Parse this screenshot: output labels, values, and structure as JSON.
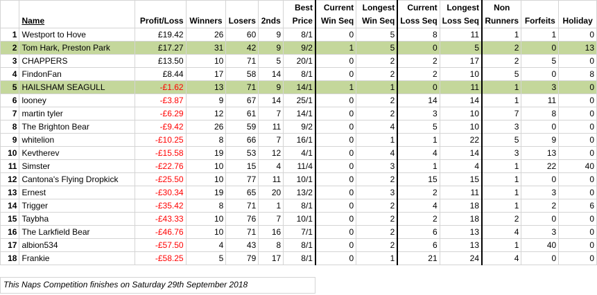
{
  "headers": {
    "name": "Name",
    "profit_loss": "Profit/Loss",
    "winners": "Winners",
    "losers": "Losers",
    "seconds": "2nds",
    "best_price_1": "Best",
    "best_price_2": "Price",
    "cur_win_1": "Current",
    "cur_win_2": "Win Seq",
    "long_win_1": "Longest",
    "long_win_2": "Win Seq",
    "cur_loss_1": "Current",
    "cur_loss_2": "Loss Seq",
    "long_loss_1": "Longest",
    "long_loss_2": "Loss Seq",
    "non_runners_1": "Non",
    "non_runners_2": "Runners",
    "forfeits": "Forfeits",
    "holiday": "Holiday"
  },
  "rows": [
    {
      "pos": "1",
      "name": "Westport to Hove",
      "pl": "£19.42",
      "winners": "26",
      "losers": "60",
      "seconds": "9",
      "best": "8/1",
      "cur_win": "0",
      "long_win": "5",
      "cur_loss": "8",
      "long_loss": "11",
      "non_runners": "1",
      "forfeits": "1",
      "holiday": "0"
    },
    {
      "pos": "2",
      "name": "Tom Hark, Preston Park",
      "pl": "£17.27",
      "winners": "31",
      "losers": "42",
      "seconds": "9",
      "best": "9/2",
      "cur_win": "1",
      "long_win": "5",
      "cur_loss": "0",
      "long_loss": "5",
      "non_runners": "2",
      "forfeits": "0",
      "holiday": "13"
    },
    {
      "pos": "3",
      "name": "CHAPPERS",
      "pl": "£13.50",
      "winners": "10",
      "losers": "71",
      "seconds": "5",
      "best": "20/1",
      "cur_win": "0",
      "long_win": "2",
      "cur_loss": "2",
      "long_loss": "17",
      "non_runners": "2",
      "forfeits": "5",
      "holiday": "0"
    },
    {
      "pos": "4",
      "name": "FindonFan",
      "pl": "£8.44",
      "winners": "17",
      "losers": "58",
      "seconds": "14",
      "best": "8/1",
      "cur_win": "0",
      "long_win": "2",
      "cur_loss": "2",
      "long_loss": "10",
      "non_runners": "5",
      "forfeits": "0",
      "holiday": "8"
    },
    {
      "pos": "5",
      "name": "HAILSHAM SEAGULL",
      "pl": "-£1.62",
      "winners": "13",
      "losers": "71",
      "seconds": "9",
      "best": "14/1",
      "cur_win": "1",
      "long_win": "1",
      "cur_loss": "0",
      "long_loss": "11",
      "non_runners": "1",
      "forfeits": "3",
      "holiday": "0"
    },
    {
      "pos": "6",
      "name": "looney",
      "pl": "-£3.87",
      "winners": "9",
      "losers": "67",
      "seconds": "14",
      "best": "25/1",
      "cur_win": "0",
      "long_win": "2",
      "cur_loss": "14",
      "long_loss": "14",
      "non_runners": "1",
      "forfeits": "11",
      "holiday": "0"
    },
    {
      "pos": "7",
      "name": "martin tyler",
      "pl": "-£6.29",
      "winners": "12",
      "losers": "61",
      "seconds": "7",
      "best": "14/1",
      "cur_win": "0",
      "long_win": "2",
      "cur_loss": "3",
      "long_loss": "10",
      "non_runners": "7",
      "forfeits": "8",
      "holiday": "0"
    },
    {
      "pos": "8",
      "name": "The Brighton Bear",
      "pl": "-£9.42",
      "winners": "26",
      "losers": "59",
      "seconds": "11",
      "best": "9/2",
      "cur_win": "0",
      "long_win": "4",
      "cur_loss": "5",
      "long_loss": "10",
      "non_runners": "3",
      "forfeits": "0",
      "holiday": "0"
    },
    {
      "pos": "9",
      "name": "whitelion",
      "pl": "-£10.25",
      "winners": "8",
      "losers": "66",
      "seconds": "7",
      "best": "16/1",
      "cur_win": "0",
      "long_win": "1",
      "cur_loss": "1",
      "long_loss": "22",
      "non_runners": "5",
      "forfeits": "9",
      "holiday": "0"
    },
    {
      "pos": "10",
      "name": "Kevtherev",
      "pl": "-£15.58",
      "winners": "19",
      "losers": "53",
      "seconds": "12",
      "best": "4/1",
      "cur_win": "0",
      "long_win": "4",
      "cur_loss": "4",
      "long_loss": "14",
      "non_runners": "3",
      "forfeits": "13",
      "holiday": "0"
    },
    {
      "pos": "11",
      "name": "Simster",
      "pl": "-£22.76",
      "winners": "10",
      "losers": "15",
      "seconds": "4",
      "best": "11/4",
      "cur_win": "0",
      "long_win": "3",
      "cur_loss": "1",
      "long_loss": "4",
      "non_runners": "1",
      "forfeits": "22",
      "holiday": "40"
    },
    {
      "pos": "12",
      "name": "Cantona's Flying Dropkick",
      "pl": "-£25.50",
      "winners": "10",
      "losers": "77",
      "seconds": "11",
      "best": "10/1",
      "cur_win": "0",
      "long_win": "2",
      "cur_loss": "15",
      "long_loss": "15",
      "non_runners": "1",
      "forfeits": "0",
      "holiday": "0"
    },
    {
      "pos": "13",
      "name": "Ernest",
      "pl": "-£30.34",
      "winners": "19",
      "losers": "65",
      "seconds": "20",
      "best": "13/2",
      "cur_win": "0",
      "long_win": "3",
      "cur_loss": "2",
      "long_loss": "11",
      "non_runners": "1",
      "forfeits": "3",
      "holiday": "0"
    },
    {
      "pos": "14",
      "name": "Trigger",
      "pl": "-£35.42",
      "winners": "8",
      "losers": "71",
      "seconds": "1",
      "best": "8/1",
      "cur_win": "0",
      "long_win": "2",
      "cur_loss": "4",
      "long_loss": "18",
      "non_runners": "1",
      "forfeits": "2",
      "holiday": "6"
    },
    {
      "pos": "15",
      "name": "Taybha",
      "pl": "-£43.33",
      "winners": "10",
      "losers": "76",
      "seconds": "7",
      "best": "10/1",
      "cur_win": "0",
      "long_win": "2",
      "cur_loss": "2",
      "long_loss": "18",
      "non_runners": "2",
      "forfeits": "0",
      "holiday": "0"
    },
    {
      "pos": "16",
      "name": "The Larkfield Bear",
      "pl": "-£46.76",
      "winners": "10",
      "losers": "71",
      "seconds": "16",
      "best": "7/1",
      "cur_win": "0",
      "long_win": "2",
      "cur_loss": "6",
      "long_loss": "13",
      "non_runners": "4",
      "forfeits": "3",
      "holiday": "0"
    },
    {
      "pos": "17",
      "name": "albion534",
      "pl": "-£57.50",
      "winners": "4",
      "losers": "43",
      "seconds": "8",
      "best": "8/1",
      "cur_win": "0",
      "long_win": "2",
      "cur_loss": "6",
      "long_loss": "13",
      "non_runners": "1",
      "forfeits": "40",
      "holiday": "0"
    },
    {
      "pos": "18",
      "name": "Frankie",
      "pl": "-£58.25",
      "winners": "5",
      "losers": "79",
      "seconds": "17",
      "best": "8/1",
      "cur_win": "0",
      "long_win": "1",
      "cur_loss": "21",
      "long_loss": "24",
      "non_runners": "4",
      "forfeits": "0",
      "holiday": "0"
    }
  ],
  "highlight_color": "#c4d79b",
  "negative_color": "#ff0000",
  "footnote": "This Naps Competition finishes on Saturday 29th September 2018"
}
